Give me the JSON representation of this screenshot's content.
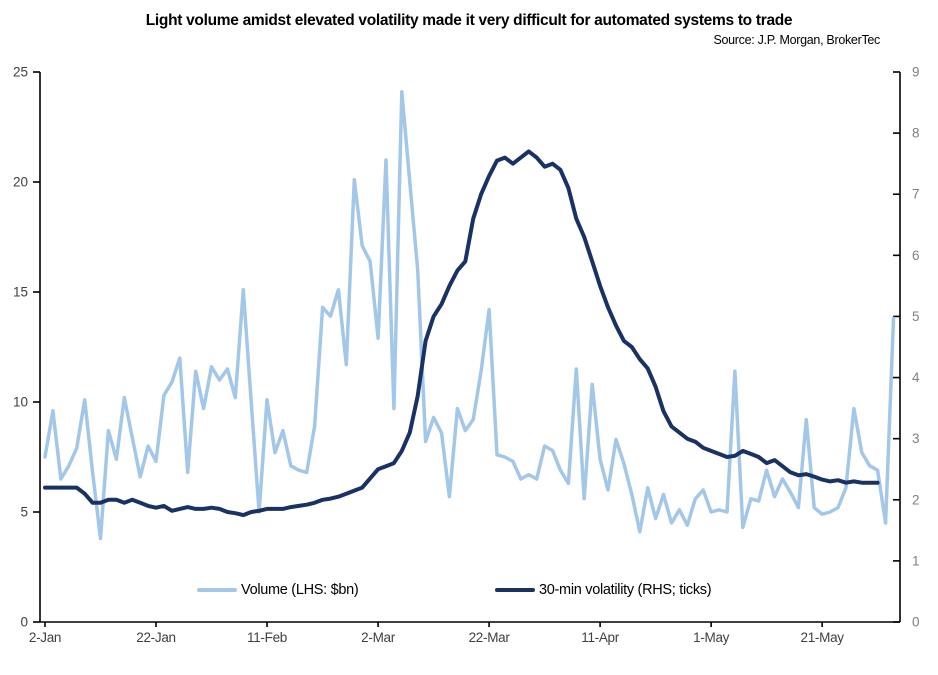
{
  "chart": {
    "title": "Light volume amidst elevated volatility made it very difficult for automated systems to trade",
    "source": "Source: J.P. Morgan, BrokerTec"
  },
  "chart_data": {
    "type": "line",
    "title": "Light volume amidst elevated volatility made it very difficult for automated systems to trade",
    "source": "Source: J.P. Morgan, BrokerTec",
    "x_axis": {
      "tick_labels": [
        "2-Jan",
        "22-Jan",
        "11-Feb",
        "2-Mar",
        "22-Mar",
        "11-Apr",
        "1-May",
        "21-May"
      ],
      "tick_days": [
        0,
        14,
        28,
        42,
        56,
        70,
        84,
        98
      ],
      "total_days": 107
    },
    "left_axis": {
      "range": [
        0,
        25
      ],
      "ticks": [
        0,
        5,
        10,
        15,
        20,
        25
      ],
      "label_color": "#404040"
    },
    "right_axis": {
      "range": [
        0,
        9
      ],
      "ticks": [
        0,
        1,
        2,
        3,
        4,
        5,
        6,
        7,
        8,
        9
      ],
      "label_color": "#808080"
    },
    "grid": "off",
    "legend_position": "bottom-inside",
    "series": [
      {
        "name": "Volume (LHS: $bn)",
        "axis": "left",
        "color": "#A3C7E8",
        "stroke_width": 3.5,
        "values": [
          7.5,
          9.6,
          6.5,
          7.1,
          7.9,
          10.1,
          6.8,
          3.8,
          8.7,
          7.4,
          10.2,
          8.4,
          6.6,
          8.0,
          7.3,
          10.3,
          10.9,
          12.0,
          6.8,
          11.4,
          9.7,
          11.6,
          11.0,
          11.5,
          10.2,
          15.1,
          10.0,
          5.0,
          10.1,
          7.7,
          8.7,
          7.1,
          6.9,
          6.8,
          8.9,
          14.3,
          13.9,
          15.1,
          11.7,
          20.1,
          17.1,
          16.4,
          12.9,
          21.0,
          9.7,
          24.1,
          20.0,
          16.0,
          8.2,
          9.3,
          8.6,
          5.7,
          9.7,
          8.7,
          9.2,
          11.4,
          14.2,
          7.6,
          7.5,
          7.3,
          6.5,
          6.7,
          6.5,
          8.0,
          7.8,
          6.9,
          6.3,
          11.5,
          5.6,
          10.8,
          7.4,
          6.0,
          8.3,
          7.2,
          5.8,
          4.1,
          6.1,
          4.7,
          5.8,
          4.5,
          5.1,
          4.4,
          5.6,
          6.0,
          5.0,
          5.1,
          5.0,
          11.4,
          4.3,
          5.6,
          5.5,
          6.9,
          5.7,
          6.5,
          5.9,
          5.2,
          9.2,
          5.2,
          4.9,
          5.0,
          5.2,
          6.1,
          9.7,
          7.7,
          7.1,
          6.9,
          4.5,
          13.8
        ]
      },
      {
        "name": "30-min volatility (RHS; ticks)",
        "axis": "right",
        "color": "#1A3263",
        "stroke_width": 4,
        "values": [
          2.2,
          2.2,
          2.2,
          2.2,
          2.2,
          2.1,
          1.95,
          1.95,
          2.0,
          2.0,
          1.95,
          2.0,
          1.95,
          1.9,
          1.87,
          1.9,
          1.82,
          1.85,
          1.88,
          1.85,
          1.85,
          1.87,
          1.85,
          1.8,
          1.78,
          1.75,
          1.8,
          1.82,
          1.85,
          1.85,
          1.85,
          1.88,
          1.9,
          1.92,
          1.95,
          2.0,
          2.02,
          2.05,
          2.1,
          2.15,
          2.2,
          2.35,
          2.5,
          2.55,
          2.6,
          2.8,
          3.1,
          3.7,
          4.6,
          5.0,
          5.2,
          5.5,
          5.75,
          5.9,
          6.6,
          7.0,
          7.3,
          7.55,
          7.6,
          7.5,
          7.6,
          7.7,
          7.6,
          7.45,
          7.5,
          7.4,
          7.1,
          6.6,
          6.3,
          5.9,
          5.5,
          5.15,
          4.85,
          4.6,
          4.5,
          4.3,
          4.15,
          3.85,
          3.45,
          3.2,
          3.1,
          3.0,
          2.95,
          2.85,
          2.8,
          2.75,
          2.7,
          2.72,
          2.8,
          2.75,
          2.7,
          2.6,
          2.65,
          2.55,
          2.45,
          2.4,
          2.42,
          2.38,
          2.33,
          2.3,
          2.32,
          2.28,
          2.3,
          2.28,
          2.28,
          2.28,
          null,
          null
        ]
      }
    ]
  }
}
